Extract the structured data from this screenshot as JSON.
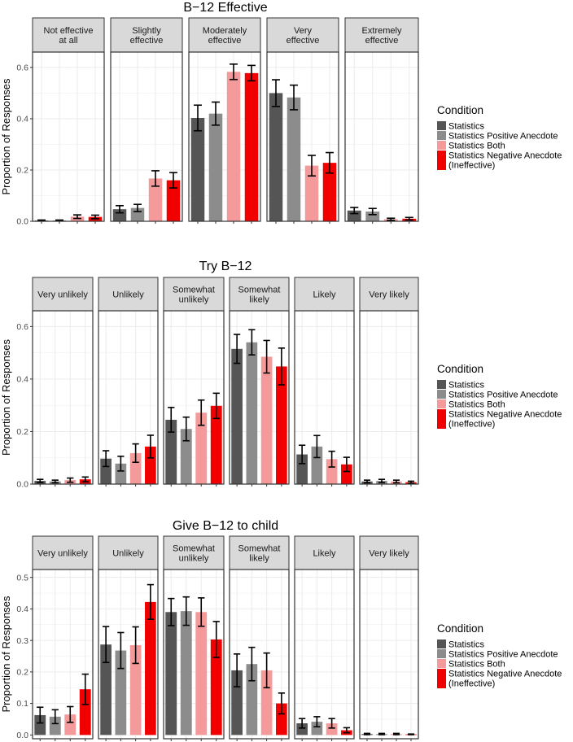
{
  "colors": {
    "Statistics": "#555555",
    "Statistics Positive Anecdote": "#8c8c8c",
    "Statistics Both": "#f59a9a",
    "Statistics Negative Anecdote (Ineffective)": "#f20000"
  },
  "legend": {
    "title": "Condition",
    "items": [
      {
        "lines": [
          "Statistics"
        ]
      },
      {
        "lines": [
          "Statistics Positive Anecdote"
        ]
      },
      {
        "lines": [
          "Statistics Both"
        ]
      },
      {
        "lines": [
          "Statistics Negative Anecdote",
          "(Ineffective)"
        ]
      }
    ]
  },
  "chart_data": [
    {
      "type": "bar",
      "title": "B−12 Effective",
      "ylabel": "Proportion of Responses",
      "ylim": [
        0,
        0.66
      ],
      "yticks": [
        "0.0",
        "0.2",
        "0.4",
        "0.6"
      ],
      "facets": [
        {
          "lines": [
            "Not effective",
            "at all"
          ],
          "values": [
            0.003,
            0.003,
            0.018,
            0.017
          ],
          "err": [
            0.002,
            0.002,
            0.007,
            0.007
          ]
        },
        {
          "lines": [
            "Slightly",
            "effective"
          ],
          "values": [
            0.047,
            0.052,
            0.167,
            0.16
          ],
          "err": [
            0.014,
            0.014,
            0.03,
            0.03
          ]
        },
        {
          "lines": [
            "Moderately",
            "effective"
          ],
          "values": [
            0.403,
            0.42,
            0.583,
            0.578
          ],
          "err": [
            0.05,
            0.045,
            0.03,
            0.03
          ]
        },
        {
          "lines": [
            "Very",
            "effective"
          ],
          "values": [
            0.5,
            0.483,
            0.217,
            0.228
          ],
          "err": [
            0.052,
            0.048,
            0.04,
            0.04
          ]
        },
        {
          "lines": [
            "Extremely",
            "effective"
          ],
          "values": [
            0.042,
            0.038,
            0.008,
            0.01
          ],
          "err": [
            0.012,
            0.012,
            0.004,
            0.005
          ]
        }
      ],
      "series": [
        {
          "name": "Statistics"
        },
        {
          "name": "Statistics Positive Anecdote"
        },
        {
          "name": "Statistics Both"
        },
        {
          "name": "Statistics Negative Anecdote (Ineffective)"
        }
      ]
    },
    {
      "type": "bar",
      "title": "Try B−12",
      "ylabel": "Proportion of Responses",
      "ylim": [
        0,
        0.66
      ],
      "yticks": [
        "0.0",
        "0.2",
        "0.4",
        "0.6"
      ],
      "facets": [
        {
          "lines": [
            "Very unlikely"
          ],
          "values": [
            0.012,
            0.01,
            0.015,
            0.018
          ],
          "err": [
            0.006,
            0.005,
            0.008,
            0.009
          ]
        },
        {
          "lines": [
            "Unlikely"
          ],
          "values": [
            0.097,
            0.078,
            0.118,
            0.143
          ],
          "err": [
            0.03,
            0.028,
            0.035,
            0.043
          ]
        },
        {
          "lines": [
            "Somewhat",
            "unlikely"
          ],
          "values": [
            0.245,
            0.21,
            0.272,
            0.298
          ],
          "err": [
            0.047,
            0.045,
            0.048,
            0.048
          ]
        },
        {
          "lines": [
            "Somewhat",
            "likely"
          ],
          "values": [
            0.515,
            0.54,
            0.485,
            0.448
          ],
          "err": [
            0.055,
            0.048,
            0.062,
            0.07
          ]
        },
        {
          "lines": [
            "Likely"
          ],
          "values": [
            0.113,
            0.143,
            0.095,
            0.075
          ],
          "err": [
            0.035,
            0.042,
            0.03,
            0.027
          ]
        },
        {
          "lines": [
            "Very likely"
          ],
          "values": [
            0.01,
            0.012,
            0.01,
            0.007
          ],
          "err": [
            0.005,
            0.006,
            0.005,
            0.004
          ]
        }
      ],
      "series": [
        {
          "name": "Statistics"
        },
        {
          "name": "Statistics Positive Anecdote"
        },
        {
          "name": "Statistics Both"
        },
        {
          "name": "Statistics Negative Anecdote (Ineffective)"
        }
      ]
    },
    {
      "type": "bar",
      "title": "Give B−12 to child",
      "ylabel": "Proportion of Responses",
      "ylim": [
        -0.012,
        0.525
      ],
      "yticks": [
        "0.0",
        "0.1",
        "0.2",
        "0.3",
        "0.4",
        "0.5"
      ],
      "facets": [
        {
          "lines": [
            "Very unlikely"
          ],
          "values": [
            0.063,
            0.058,
            0.065,
            0.145
          ],
          "err": [
            0.025,
            0.022,
            0.025,
            0.048
          ]
        },
        {
          "lines": [
            "Unlikely"
          ],
          "values": [
            0.287,
            0.268,
            0.285,
            0.422
          ],
          "err": [
            0.057,
            0.057,
            0.058,
            0.055
          ]
        },
        {
          "lines": [
            "Somewhat",
            "unlikely"
          ],
          "values": [
            0.39,
            0.393,
            0.39,
            0.303
          ],
          "err": [
            0.043,
            0.045,
            0.045,
            0.057
          ]
        },
        {
          "lines": [
            "Somewhat",
            "likely"
          ],
          "values": [
            0.205,
            0.225,
            0.205,
            0.1
          ],
          "err": [
            0.052,
            0.053,
            0.055,
            0.033
          ]
        },
        {
          "lines": [
            "Likely"
          ],
          "values": [
            0.037,
            0.042,
            0.037,
            0.015
          ],
          "err": [
            0.015,
            0.016,
            0.015,
            0.008
          ]
        },
        {
          "lines": [
            "Very likely"
          ],
          "values": [
            0.003,
            0.003,
            0.003,
            0.002
          ],
          "err": [
            0.002,
            0.002,
            0.002,
            0.001
          ]
        }
      ],
      "series": [
        {
          "name": "Statistics"
        },
        {
          "name": "Statistics Positive Anecdote"
        },
        {
          "name": "Statistics Both"
        },
        {
          "name": "Statistics Negative Anecdote (Ineffective)"
        }
      ]
    }
  ]
}
